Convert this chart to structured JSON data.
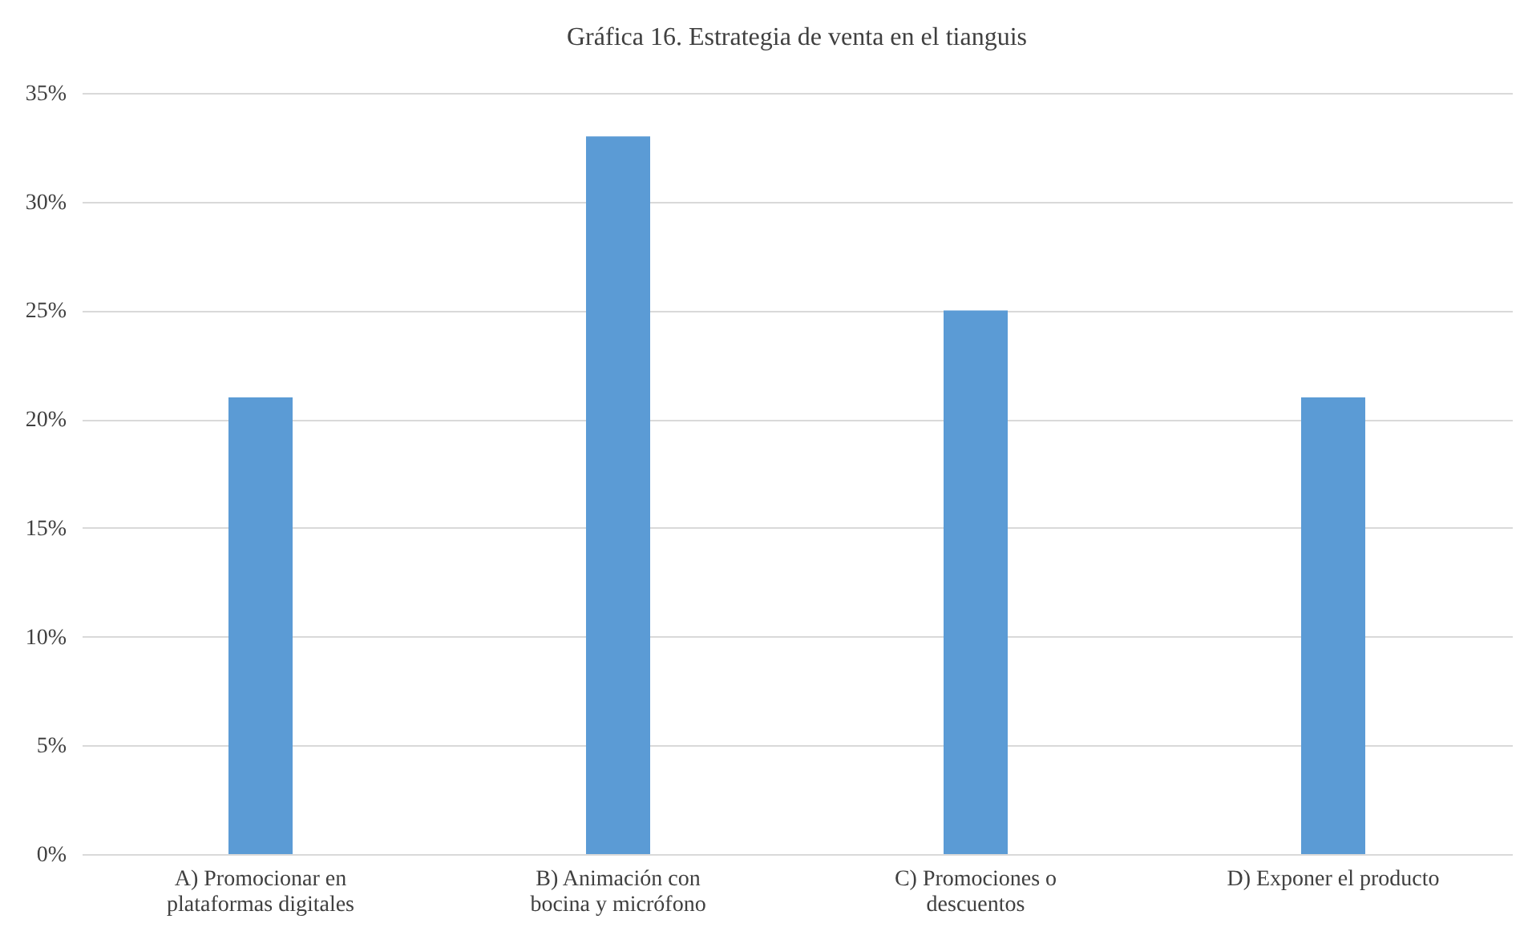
{
  "chart_data": {
    "type": "bar",
    "title": "Gráfica  16. Estrategia de venta en el tianguis",
    "categories": [
      "A) Promocionar en plataformas digitales",
      "B) Animación con bocina y micrófono",
      "C) Promociones o descuentos",
      "D) Exponer el producto"
    ],
    "values": [
      21,
      33,
      25,
      21
    ],
    "color": "#5b9bd5",
    "ylim": [
      0,
      35
    ],
    "yticks": [
      {
        "value": 0,
        "label": "0%"
      },
      {
        "value": 5,
        "label": "5%"
      },
      {
        "value": 10,
        "label": "10%"
      },
      {
        "value": 15,
        "label": "15%"
      },
      {
        "value": 20,
        "label": "20%"
      },
      {
        "value": 25,
        "label": "25%"
      },
      {
        "value": 30,
        "label": "30%"
      },
      {
        "value": 35,
        "label": "35%"
      }
    ],
    "grid": "y"
  }
}
